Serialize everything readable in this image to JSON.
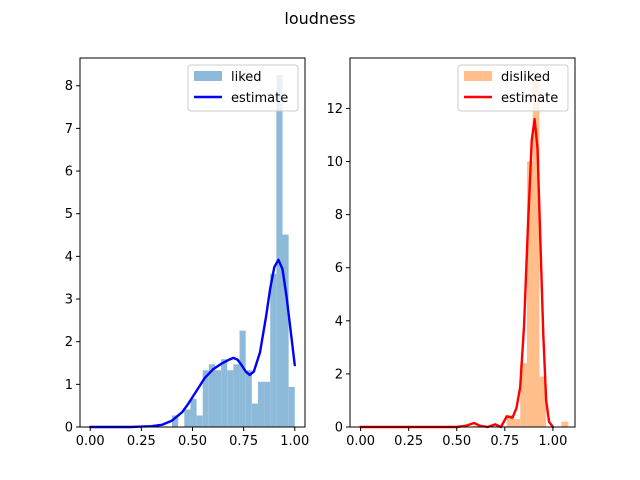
{
  "figure": {
    "suptitle": "loudness"
  },
  "chart_data": [
    {
      "type": "bar",
      "panel": "left",
      "title": "",
      "xlabel": "",
      "ylabel": "",
      "xlim": [
        -0.05,
        1.05
      ],
      "ylim": [
        0,
        8.65
      ],
      "xticks": [
        0.0,
        0.25,
        0.5,
        0.75,
        1.0
      ],
      "xtick_labels": [
        "0.00",
        "0.25",
        "0.50",
        "0.75",
        "1.00"
      ],
      "yticks": [
        0,
        1,
        2,
        3,
        4,
        5,
        6,
        7,
        8
      ],
      "ytick_labels": [
        "0",
        "1",
        "2",
        "3",
        "4",
        "5",
        "6",
        "7",
        "8"
      ],
      "legend": {
        "placement": "top-right",
        "entries": [
          "liked",
          "estimate"
        ]
      },
      "series": [
        {
          "name": "liked",
          "kind": "histogram",
          "color": "#8dbad9",
          "bin_width": 0.03,
          "bins": [
            {
              "x0": 0.4,
              "height": 0.27
            },
            {
              "x0": 0.43,
              "height": 0.0
            },
            {
              "x0": 0.46,
              "height": 0.41
            },
            {
              "x0": 0.49,
              "height": 0.66
            },
            {
              "x0": 0.52,
              "height": 0.27
            },
            {
              "x0": 0.55,
              "height": 1.33
            },
            {
              "x0": 0.58,
              "height": 1.47
            },
            {
              "x0": 0.61,
              "height": 1.33
            },
            {
              "x0": 0.64,
              "height": 1.59
            },
            {
              "x0": 0.67,
              "height": 1.33
            },
            {
              "x0": 0.7,
              "height": 1.47
            },
            {
              "x0": 0.73,
              "height": 2.26
            },
            {
              "x0": 0.76,
              "height": 1.33
            },
            {
              "x0": 0.79,
              "height": 0.55
            },
            {
              "x0": 0.82,
              "height": 1.06
            },
            {
              "x0": 0.85,
              "height": 1.06
            },
            {
              "x0": 0.88,
              "height": 3.59
            },
            {
              "x0": 0.91,
              "height": 8.25
            },
            {
              "x0": 0.94,
              "height": 4.51
            },
            {
              "x0": 0.97,
              "height": 0.94
            }
          ]
        },
        {
          "name": "estimate",
          "kind": "line",
          "color": "#0000ff",
          "points": [
            [
              0.0,
              0.0
            ],
            [
              0.1,
              0.0
            ],
            [
              0.2,
              0.0
            ],
            [
              0.25,
              0.01
            ],
            [
              0.3,
              0.02
            ],
            [
              0.35,
              0.05
            ],
            [
              0.4,
              0.15
            ],
            [
              0.45,
              0.35
            ],
            [
              0.48,
              0.55
            ],
            [
              0.52,
              0.85
            ],
            [
              0.56,
              1.15
            ],
            [
              0.6,
              1.35
            ],
            [
              0.64,
              1.48
            ],
            [
              0.68,
              1.58
            ],
            [
              0.7,
              1.62
            ],
            [
              0.72,
              1.58
            ],
            [
              0.74,
              1.45
            ],
            [
              0.76,
              1.3
            ],
            [
              0.78,
              1.22
            ],
            [
              0.8,
              1.3
            ],
            [
              0.83,
              1.75
            ],
            [
              0.86,
              2.6
            ],
            [
              0.88,
              3.25
            ],
            [
              0.9,
              3.75
            ],
            [
              0.92,
              3.92
            ],
            [
              0.94,
              3.7
            ],
            [
              0.96,
              3.05
            ],
            [
              0.98,
              2.25
            ],
            [
              1.0,
              1.45
            ]
          ]
        }
      ]
    },
    {
      "type": "bar",
      "panel": "right",
      "title": "",
      "xlabel": "",
      "ylabel": "",
      "xlim": [
        -0.055,
        1.115
      ],
      "ylim": [
        0,
        13.9
      ],
      "xticks": [
        0.0,
        0.25,
        0.5,
        0.75,
        1.0
      ],
      "xtick_labels": [
        "0.00",
        "0.25",
        "0.50",
        "0.75",
        "1.00"
      ],
      "yticks": [
        0,
        2,
        4,
        6,
        8,
        10,
        12
      ],
      "ytick_labels": [
        "0",
        "2",
        "4",
        "6",
        "8",
        "10",
        "12"
      ],
      "legend": {
        "placement": "top-right",
        "entries": [
          "disliked",
          "estimate"
        ]
      },
      "series": [
        {
          "name": "disliked",
          "kind": "histogram",
          "color": "#ffbe8a",
          "bin_width": 0.035,
          "bins": [
            {
              "x0": 0.585,
              "height": 0.05
            },
            {
              "x0": 0.76,
              "height": 0.45
            },
            {
              "x0": 0.795,
              "height": 0.3
            },
            {
              "x0": 0.83,
              "height": 2.4
            },
            {
              "x0": 0.865,
              "height": 10.0
            },
            {
              "x0": 0.895,
              "height": 13.2
            },
            {
              "x0": 0.93,
              "height": 1.9
            },
            {
              "x0": 1.045,
              "height": 0.2
            }
          ]
        },
        {
          "name": "estimate",
          "kind": "line",
          "color": "#ff0000",
          "points": [
            [
              0.0,
              0.0
            ],
            [
              0.2,
              0.0
            ],
            [
              0.4,
              0.0
            ],
            [
              0.5,
              0.0
            ],
            [
              0.55,
              0.05
            ],
            [
              0.59,
              0.15
            ],
            [
              0.62,
              0.05
            ],
            [
              0.66,
              0.0
            ],
            [
              0.7,
              0.1
            ],
            [
              0.73,
              0.0
            ],
            [
              0.76,
              0.4
            ],
            [
              0.79,
              0.35
            ],
            [
              0.81,
              0.7
            ],
            [
              0.83,
              1.5
            ],
            [
              0.85,
              3.8
            ],
            [
              0.87,
              7.5
            ],
            [
              0.89,
              10.8
            ],
            [
              0.905,
              11.6
            ],
            [
              0.92,
              10.5
            ],
            [
              0.935,
              7.0
            ],
            [
              0.95,
              3.5
            ],
            [
              0.965,
              1.0
            ],
            [
              0.98,
              0.2
            ],
            [
              1.0,
              0.0
            ]
          ]
        }
      ]
    }
  ]
}
